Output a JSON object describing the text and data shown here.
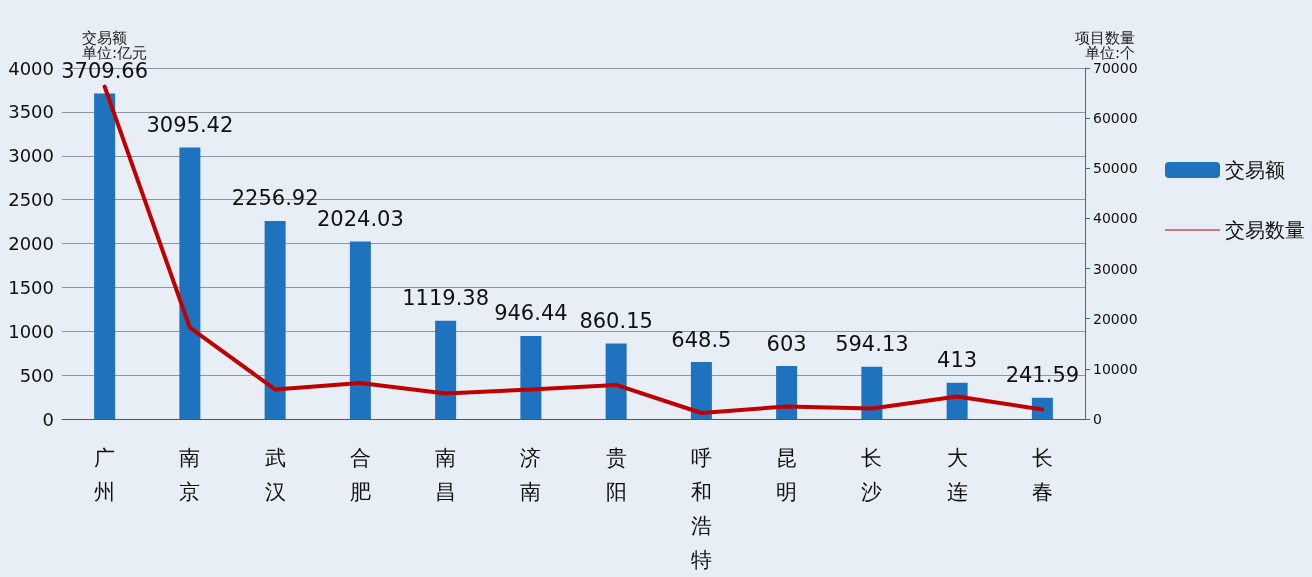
{
  "chart_data": {
    "type": "bar",
    "ylabel": "交易额",
    "y2label": "项目数量",
    "annotations": [
      "单位:亿元",
      "单位:个"
    ],
    "categories": [
      "广州",
      "南京",
      "武汉",
      "合肥",
      "南昌",
      "济南",
      "贵阳",
      "呼和浩特",
      "昆明",
      "长沙",
      "大连",
      "长春"
    ],
    "series": [
      {
        "name": "交易额",
        "color": "#1f73be",
        "values": [
          3709.66,
          3095.42,
          2256.92,
          2024.03,
          1119.38,
          946.44,
          860.15,
          648.5,
          603,
          594.13,
          413,
          241.59
        ],
        "value_labels": [
          "3709.66",
          "3095.42",
          "2256.92",
          "2024.03",
          "1119.38",
          "946.44",
          "860.15",
          "648.5",
          "603",
          "594.13",
          "413",
          "241.59"
        ]
      },
      {
        "name": "交易数量",
        "type": "line",
        "axis": "y2",
        "color": "#c00000",
        "values": [
          66300,
          18200,
          5900,
          7200,
          5100,
          5900,
          6800,
          1200,
          2500,
          2100,
          4500,
          1900
        ]
      }
    ],
    "ylim": [
      0,
      4000
    ],
    "yticks": [
      0,
      500,
      1000,
      1500,
      2000,
      2500,
      3000,
      3500,
      4000
    ],
    "y2lim": [
      0,
      70000
    ],
    "y2ticks": [
      0,
      10000,
      20000,
      30000,
      40000,
      50000,
      60000,
      70000
    ],
    "grid": "y",
    "legend": "right",
    "marker": "none",
    "line_style": "solid"
  }
}
